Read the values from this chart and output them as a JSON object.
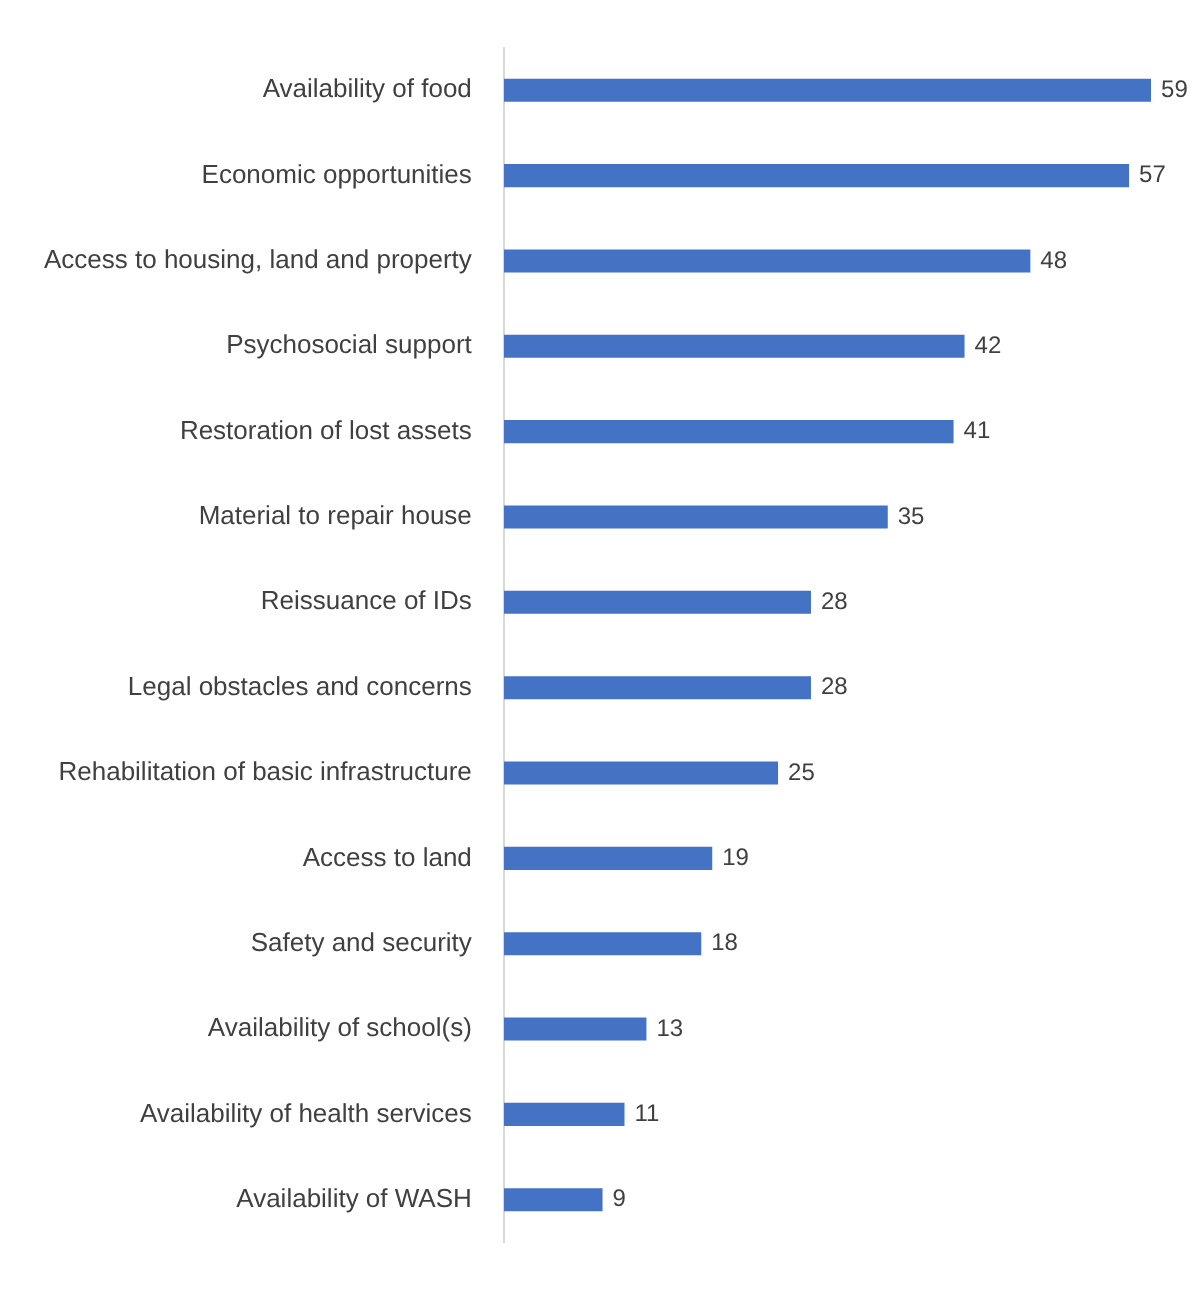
{
  "chart_data": {
    "type": "bar",
    "orientation": "horizontal",
    "categories": [
      "Availability of food",
      "Economic opportunities",
      "Access to housing, land and property",
      "Psychosocial support",
      "Restoration of lost assets",
      "Material to repair house",
      "Reissuance of IDs",
      "Legal obstacles and concerns",
      "Rehabilitation of basic infrastructure",
      "Access to land",
      "Safety and security",
      "Availability of school(s)",
      "Availability of health services",
      "Availability of WASH"
    ],
    "values": [
      59,
      57,
      48,
      42,
      41,
      35,
      28,
      28,
      25,
      19,
      18,
      13,
      11,
      9
    ],
    "color": "#4472c4",
    "data_labels": true
  }
}
